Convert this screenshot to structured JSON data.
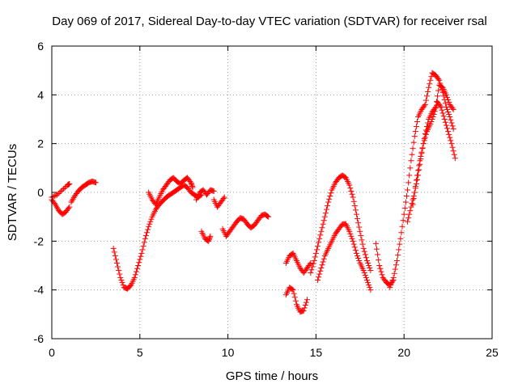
{
  "chart_data": {
    "type": "scatter",
    "title": "Day 069 of 2017, Sidereal Day-to-day VTEC variation (SDTVAR) for receiver rsal",
    "xlabel": "GPS time / hours",
    "ylabel": "SDTVAR / TECUs",
    "xlim": [
      0,
      25
    ],
    "ylim": [
      -6,
      6
    ],
    "xticks": [
      0,
      5,
      10,
      15,
      20,
      25
    ],
    "yticks": [
      -6,
      -4,
      -2,
      0,
      2,
      4,
      6
    ],
    "xtick_labels": [
      "0",
      "5",
      "10",
      "15",
      "20",
      "25"
    ],
    "ytick_labels": [
      "-6",
      "-4",
      "-2",
      "0",
      "2",
      "4",
      "6"
    ],
    "grid": true,
    "marker": "+",
    "series": [
      {
        "name": "SDTVAR",
        "color": "#ff0000",
        "segments": [
          [
            [
              0.0,
              -0.3
            ],
            [
              0.2,
              -0.5
            ],
            [
              0.4,
              -0.75
            ],
            [
              0.6,
              -0.9
            ],
            [
              0.8,
              -0.8
            ],
            [
              1.0,
              -0.6
            ]
          ],
          [
            [
              0.0,
              -0.2
            ],
            [
              0.3,
              -0.1
            ],
            [
              0.6,
              0.1
            ],
            [
              0.9,
              0.3
            ],
            [
              1.0,
              0.35
            ]
          ],
          [
            [
              1.1,
              -0.4
            ],
            [
              1.3,
              -0.15
            ],
            [
              1.5,
              0.05
            ],
            [
              1.7,
              0.2
            ],
            [
              1.9,
              0.3
            ],
            [
              2.1,
              0.4
            ],
            [
              2.3,
              0.45
            ],
            [
              2.5,
              0.4
            ]
          ],
          [
            [
              3.5,
              -2.3
            ],
            [
              3.7,
              -2.9
            ],
            [
              3.9,
              -3.5
            ],
            [
              4.1,
              -3.9
            ],
            [
              4.3,
              -3.95
            ],
            [
              4.5,
              -3.8
            ],
            [
              4.7,
              -3.5
            ],
            [
              4.9,
              -3.0
            ],
            [
              5.1,
              -2.5
            ],
            [
              5.3,
              -1.9
            ],
            [
              5.5,
              -1.4
            ],
            [
              5.7,
              -1.0
            ],
            [
              5.9,
              -0.7
            ],
            [
              6.1,
              -0.5
            ],
            [
              6.3,
              -0.35
            ],
            [
              6.5,
              -0.2
            ],
            [
              6.7,
              -0.1
            ],
            [
              6.9,
              0.0
            ],
            [
              7.1,
              0.1
            ],
            [
              7.3,
              0.2
            ],
            [
              7.5,
              0.3
            ],
            [
              7.7,
              0.2
            ],
            [
              7.9,
              0.0
            ],
            [
              8.1,
              -0.1
            ],
            [
              8.3,
              -0.2
            ],
            [
              8.5,
              -0.1
            ]
          ],
          [
            [
              5.5,
              0.0
            ],
            [
              5.7,
              -0.3
            ],
            [
              5.9,
              -0.5
            ],
            [
              6.1,
              -0.2
            ],
            [
              6.3,
              0.1
            ],
            [
              6.5,
              0.3
            ],
            [
              6.7,
              0.5
            ],
            [
              6.9,
              0.6
            ],
            [
              7.1,
              0.45
            ],
            [
              7.3,
              0.35
            ],
            [
              7.5,
              0.5
            ],
            [
              7.7,
              0.6
            ],
            [
              7.9,
              0.4
            ],
            [
              8.0,
              0.2
            ]
          ],
          [
            [
              8.2,
              -0.3
            ],
            [
              8.4,
              0.0
            ],
            [
              8.6,
              0.1
            ],
            [
              8.8,
              -0.1
            ],
            [
              9.0,
              0.1
            ],
            [
              9.2,
              0.05
            ]
          ],
          [
            [
              8.5,
              -1.6
            ],
            [
              8.7,
              -1.9
            ],
            [
              8.9,
              -2.0
            ],
            [
              9.0,
              -1.8
            ]
          ],
          [
            [
              9.2,
              -0.3
            ],
            [
              9.4,
              -0.6
            ],
            [
              9.6,
              -0.4
            ],
            [
              9.8,
              -0.2
            ]
          ],
          [
            [
              9.7,
              -1.5
            ],
            [
              9.9,
              -1.8
            ],
            [
              10.1,
              -1.6
            ],
            [
              10.3,
              -1.4
            ],
            [
              10.5,
              -1.2
            ],
            [
              10.7,
              -1.05
            ],
            [
              10.9,
              -1.1
            ],
            [
              11.1,
              -1.3
            ],
            [
              11.3,
              -1.45
            ],
            [
              11.5,
              -1.35
            ],
            [
              11.7,
              -1.15
            ],
            [
              11.9,
              -0.95
            ],
            [
              12.1,
              -0.9
            ],
            [
              12.3,
              -1.0
            ]
          ],
          [
            [
              13.3,
              -2.9
            ],
            [
              13.5,
              -2.6
            ],
            [
              13.7,
              -2.5
            ],
            [
              13.9,
              -2.8
            ],
            [
              14.1,
              -3.1
            ],
            [
              14.3,
              -3.3
            ],
            [
              14.5,
              -3.1
            ],
            [
              14.7,
              -2.9
            ]
          ],
          [
            [
              13.3,
              -4.2
            ],
            [
              13.5,
              -3.9
            ],
            [
              13.7,
              -4.0
            ],
            [
              13.9,
              -4.6
            ],
            [
              14.1,
              -4.9
            ],
            [
              14.3,
              -4.85
            ],
            [
              14.5,
              -4.4
            ]
          ],
          [
            [
              14.7,
              -3.3
            ],
            [
              14.9,
              -2.8
            ],
            [
              15.1,
              -2.2
            ],
            [
              15.3,
              -1.6
            ],
            [
              15.5,
              -1.0
            ],
            [
              15.7,
              -0.4
            ],
            [
              15.9,
              0.1
            ],
            [
              16.1,
              0.4
            ],
            [
              16.3,
              0.6
            ],
            [
              16.5,
              0.7
            ],
            [
              16.7,
              0.6
            ],
            [
              16.9,
              0.3
            ],
            [
              17.1,
              -0.2
            ],
            [
              17.3,
              -0.9
            ],
            [
              17.5,
              -1.6
            ],
            [
              17.7,
              -2.3
            ],
            [
              17.9,
              -2.8
            ],
            [
              18.1,
              -3.2
            ]
          ],
          [
            [
              15.1,
              -3.6
            ],
            [
              15.3,
              -3.1
            ],
            [
              15.5,
              -2.6
            ],
            [
              15.7,
              -2.3
            ],
            [
              15.9,
              -2.0
            ],
            [
              16.1,
              -1.7
            ],
            [
              16.3,
              -1.5
            ],
            [
              16.5,
              -1.3
            ],
            [
              16.7,
              -1.3
            ],
            [
              16.9,
              -1.6
            ],
            [
              17.1,
              -2.0
            ],
            [
              17.3,
              -2.5
            ],
            [
              17.5,
              -2.9
            ],
            [
              17.7,
              -3.2
            ],
            [
              17.9,
              -3.6
            ],
            [
              18.1,
              -4.0
            ]
          ],
          [
            [
              18.4,
              -2.1
            ],
            [
              18.6,
              -3.0
            ],
            [
              18.8,
              -3.5
            ],
            [
              19.0,
              -3.7
            ],
            [
              19.2,
              -3.8
            ],
            [
              19.4,
              -3.6
            ]
          ],
          [
            [
              19.2,
              -3.9
            ],
            [
              19.4,
              -3.5
            ],
            [
              19.6,
              -2.8
            ],
            [
              19.8,
              -1.9
            ],
            [
              20.0,
              -0.9
            ],
            [
              20.2,
              0.1
            ],
            [
              20.4,
              1.3
            ],
            [
              20.6,
              2.3
            ],
            [
              20.8,
              3.1
            ],
            [
              21.0,
              3.4
            ],
            [
              21.2,
              3.6
            ],
            [
              21.4,
              4.3
            ],
            [
              21.6,
              4.9
            ],
            [
              21.8,
              4.8
            ],
            [
              22.0,
              4.6
            ],
            [
              22.2,
              4.1
            ],
            [
              22.4,
              3.5
            ],
            [
              22.6,
              3.1
            ],
            [
              22.8,
              2.6
            ]
          ],
          [
            [
              20.2,
              -1.2
            ],
            [
              20.4,
              -0.6
            ],
            [
              20.6,
              0.0
            ],
            [
              20.8,
              0.7
            ],
            [
              21.0,
              1.6
            ],
            [
              21.2,
              2.4
            ],
            [
              21.4,
              3.0
            ],
            [
              21.6,
              3.3
            ],
            [
              21.8,
              3.5
            ],
            [
              22.0,
              4.4
            ],
            [
              22.2,
              4.3
            ],
            [
              22.4,
              4.0
            ],
            [
              22.6,
              3.6
            ],
            [
              22.8,
              3.4
            ]
          ],
          [
            [
              20.5,
              -0.5
            ],
            [
              20.7,
              0.5
            ],
            [
              20.9,
              1.3
            ],
            [
              21.1,
              2.0
            ],
            [
              21.3,
              2.5
            ],
            [
              21.5,
              2.8
            ],
            [
              21.7,
              3.2
            ],
            [
              21.9,
              3.7
            ],
            [
              22.1,
              3.5
            ],
            [
              22.3,
              3.0
            ],
            [
              22.5,
              2.5
            ],
            [
              22.7,
              2.0
            ],
            [
              22.9,
              1.4
            ]
          ]
        ]
      }
    ]
  }
}
